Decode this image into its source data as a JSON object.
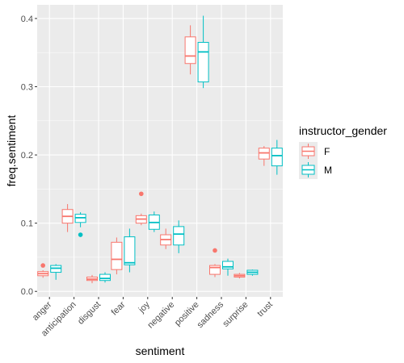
{
  "chart_data": {
    "type": "boxplot",
    "title": "",
    "xlabel": "sentiment",
    "ylabel": "freq.sentiment",
    "ylim": [
      -0.008,
      0.42
    ],
    "y_ticks": [
      0.0,
      0.1,
      0.2,
      0.3,
      0.4
    ],
    "y_tick_labels": [
      "0.0",
      "0.1",
      "0.2",
      "0.3",
      "0.4"
    ],
    "grid": true,
    "legend": {
      "title": "instructor_gender",
      "position": "right",
      "entries": [
        {
          "name": "F",
          "color": "#F8766D"
        },
        {
          "name": "M",
          "color": "#00BFC4"
        }
      ]
    },
    "categories": [
      "anger",
      "anticipation",
      "disgust",
      "fear",
      "joy",
      "negative",
      "positive",
      "sadness",
      "surprise",
      "trust"
    ],
    "series": [
      {
        "name": "F",
        "color": "#F8766D",
        "boxes": [
          {
            "min": 0.02,
            "q1": 0.023,
            "median": 0.026,
            "q3": 0.029,
            "max": 0.031,
            "outliers": [
              0.038
            ]
          },
          {
            "min": 0.087,
            "q1": 0.1,
            "median": 0.11,
            "q3": 0.12,
            "max": 0.128,
            "outliers": []
          },
          {
            "min": 0.012,
            "q1": 0.016,
            "median": 0.018,
            "q3": 0.021,
            "max": 0.024,
            "outliers": []
          },
          {
            "min": 0.025,
            "q1": 0.032,
            "median": 0.047,
            "q3": 0.072,
            "max": 0.079,
            "outliers": []
          },
          {
            "min": 0.097,
            "q1": 0.1,
            "median": 0.106,
            "q3": 0.111,
            "max": 0.114,
            "outliers": [
              0.143
            ]
          },
          {
            "min": 0.062,
            "q1": 0.068,
            "median": 0.076,
            "q3": 0.083,
            "max": 0.092,
            "outliers": []
          },
          {
            "min": 0.318,
            "q1": 0.334,
            "median": 0.345,
            "q3": 0.373,
            "max": 0.39,
            "outliers": []
          },
          {
            "min": 0.021,
            "q1": 0.025,
            "median": 0.035,
            "q3": 0.038,
            "max": 0.04,
            "outliers": [
              0.06
            ]
          },
          {
            "min": 0.019,
            "q1": 0.021,
            "median": 0.023,
            "q3": 0.025,
            "max": 0.027,
            "outliers": []
          },
          {
            "min": 0.184,
            "q1": 0.194,
            "median": 0.203,
            "q3": 0.21,
            "max": 0.213,
            "outliers": []
          }
        ]
      },
      {
        "name": "M",
        "color": "#00BFC4",
        "boxes": [
          {
            "min": 0.017,
            "q1": 0.028,
            "median": 0.034,
            "q3": 0.038,
            "max": 0.04,
            "outliers": []
          },
          {
            "min": 0.094,
            "q1": 0.101,
            "median": 0.108,
            "q3": 0.113,
            "max": 0.116,
            "outliers": [
              0.083
            ]
          },
          {
            "min": 0.013,
            "q1": 0.016,
            "median": 0.019,
            "q3": 0.025,
            "max": 0.028,
            "outliers": []
          },
          {
            "min": 0.028,
            "q1": 0.039,
            "median": 0.042,
            "q3": 0.08,
            "max": 0.092,
            "outliers": []
          },
          {
            "min": 0.087,
            "q1": 0.091,
            "median": 0.101,
            "q3": 0.112,
            "max": 0.117,
            "outliers": []
          },
          {
            "min": 0.056,
            "q1": 0.068,
            "median": 0.084,
            "q3": 0.095,
            "max": 0.104,
            "outliers": []
          },
          {
            "min": 0.298,
            "q1": 0.307,
            "median": 0.351,
            "q3": 0.365,
            "max": 0.404,
            "outliers": []
          },
          {
            "min": 0.023,
            "q1": 0.033,
            "median": 0.036,
            "q3": 0.044,
            "max": 0.048,
            "outliers": []
          },
          {
            "min": 0.023,
            "q1": 0.025,
            "median": 0.028,
            "q3": 0.031,
            "max": 0.032,
            "outliers": []
          },
          {
            "min": 0.171,
            "q1": 0.184,
            "median": 0.199,
            "q3": 0.21,
            "max": 0.222,
            "outliers": []
          }
        ]
      }
    ]
  }
}
